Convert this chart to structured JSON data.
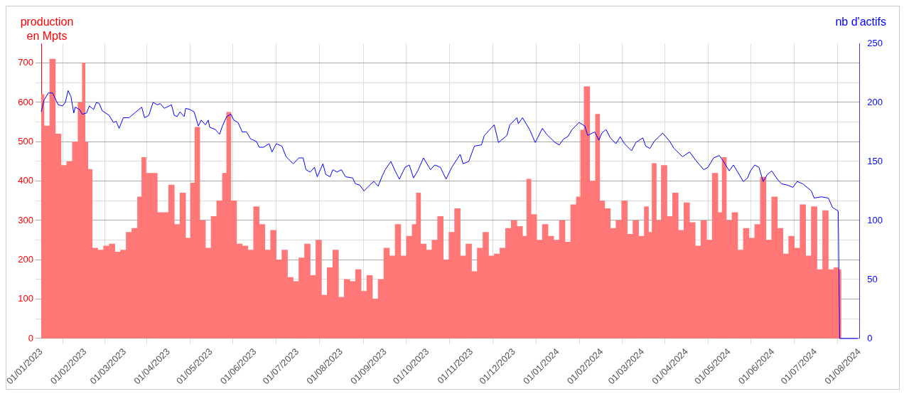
{
  "chart_data": {
    "type": "bar",
    "ylabel": "production en Mpts",
    "y2label": "nb d'actifs",
    "grid": true,
    "xlim": [
      "2023-01-01",
      "2024-08-01"
    ],
    "xticks": [
      {
        "value": "2023-01-01",
        "label": "01/01/2023"
      },
      {
        "value": "2023-02-01",
        "label": "01/02/2023"
      },
      {
        "value": "2023-03-01",
        "label": "01/03/2023"
      },
      {
        "value": "2023-04-01",
        "label": "01/04/2023"
      },
      {
        "value": "2023-05-01",
        "label": "01/05/2023"
      },
      {
        "value": "2023-06-01",
        "label": "01/06/2023"
      },
      {
        "value": "2023-07-01",
        "label": "01/07/2023"
      },
      {
        "value": "2023-08-01",
        "label": "01/08/2023"
      },
      {
        "value": "2023-09-01",
        "label": "01/09/2023"
      },
      {
        "value": "2023-10-01",
        "label": "01/10/2023"
      },
      {
        "value": "2023-11-01",
        "label": "01/11/2023"
      },
      {
        "value": "2023-12-01",
        "label": "01/12/2023"
      },
      {
        "value": "2024-01-01",
        "label": "01/01/2024"
      },
      {
        "value": "2024-02-01",
        "label": "01/02/2024"
      },
      {
        "value": "2024-03-01",
        "label": "01/03/2024"
      },
      {
        "value": "2024-04-01",
        "label": "01/04/2024"
      },
      {
        "value": "2024-05-01",
        "label": "01/05/2024"
      },
      {
        "value": "2024-06-01",
        "label": "01/06/2024"
      },
      {
        "value": "2024-07-01",
        "label": "01/07/2024"
      },
      {
        "value": "2024-08-01",
        "label": "01/08/2024"
      }
    ],
    "ylim": [
      0,
      750
    ],
    "yticks": [
      0,
      {
        "value": 50,
        "label": null
      },
      100,
      {
        "value": 150,
        "label": null
      },
      200,
      {
        "value": 250,
        "label": null
      },
      300,
      {
        "value": 350,
        "label": null
      },
      400,
      {
        "value": 450,
        "label": null
      },
      500,
      {
        "value": 550,
        "label": null
      },
      600,
      {
        "value": 650,
        "label": null
      },
      700
    ],
    "y2lim": [
      0,
      250
    ],
    "y2ticks": [
      0,
      50,
      100,
      150,
      200,
      250
    ],
    "series": [
      {
        "color": "#ff7777",
        "x": [
          "2023-01-01",
          "2023-01-05",
          "2023-01-09",
          "2023-01-13",
          "2023-01-17",
          "2023-01-21",
          "2023-01-25",
          "2023-01-29",
          "2023-01-31",
          "2023-02-02",
          "2023-02-04",
          "2023-02-08",
          "2023-02-12",
          "2023-02-16",
          "2023-02-20",
          "2023-02-24",
          "2023-02-28",
          "2023-03-04",
          "2023-03-08",
          "2023-03-12",
          "2023-03-14",
          "2023-03-18",
          "2023-03-22",
          "2023-03-26",
          "2023-03-30",
          "2023-04-03",
          "2023-04-07",
          "2023-04-11",
          "2023-04-15",
          "2023-04-18",
          "2023-04-21",
          "2023-04-25",
          "2023-04-29",
          "2023-05-03",
          "2023-05-07",
          "2023-05-11",
          "2023-05-13",
          "2023-05-17",
          "2023-05-21",
          "2023-05-25",
          "2023-05-29",
          "2023-06-02",
          "2023-06-06",
          "2023-06-10",
          "2023-06-14",
          "2023-06-18",
          "2023-06-22",
          "2023-06-26",
          "2023-06-30",
          "2023-07-04",
          "2023-07-08",
          "2023-07-12",
          "2023-07-16",
          "2023-07-20",
          "2023-07-24",
          "2023-07-28",
          "2023-08-01",
          "2023-08-05",
          "2023-08-09",
          "2023-08-13",
          "2023-08-17",
          "2023-08-21",
          "2023-08-25",
          "2023-08-29",
          "2023-09-02",
          "2023-09-06",
          "2023-09-10",
          "2023-09-14",
          "2023-09-18",
          "2023-09-22",
          "2023-09-24",
          "2023-09-28",
          "2023-10-02",
          "2023-10-06",
          "2023-10-10",
          "2023-10-14",
          "2023-10-18",
          "2023-10-22",
          "2023-10-26",
          "2023-10-30",
          "2023-11-03",
          "2023-11-07",
          "2023-11-11",
          "2023-11-15",
          "2023-11-19",
          "2023-11-23",
          "2023-11-27",
          "2023-12-01",
          "2023-12-05",
          "2023-12-09",
          "2023-12-11",
          "2023-12-15",
          "2023-12-19",
          "2023-12-23",
          "2023-12-27",
          "2023-12-31",
          "2024-01-04",
          "2024-01-08",
          "2024-01-12",
          "2024-01-16",
          "2024-01-18",
          "2024-01-21",
          "2024-01-26",
          "2024-01-29",
          "2024-02-01",
          "2024-02-05",
          "2024-02-09",
          "2024-02-13",
          "2024-02-17",
          "2024-02-21",
          "2024-02-25",
          "2024-02-29",
          "2024-03-04",
          "2024-03-06",
          "2024-03-09",
          "2024-03-12",
          "2024-03-16",
          "2024-03-20",
          "2024-03-24",
          "2024-03-28",
          "2024-04-01",
          "2024-04-05",
          "2024-04-09",
          "2024-04-13",
          "2024-04-17",
          "2024-04-21",
          "2024-04-25",
          "2024-04-27",
          "2024-05-01",
          "2024-05-05",
          "2024-05-09",
          "2024-05-13",
          "2024-05-17",
          "2024-05-21",
          "2024-05-25",
          "2024-05-29",
          "2024-06-02",
          "2024-06-06",
          "2024-06-10",
          "2024-06-14",
          "2024-06-18",
          "2024-06-22",
          "2024-06-26",
          "2024-06-30",
          "2024-07-04",
          "2024-07-08",
          "2024-07-12",
          "2024-07-16",
          "2024-07-18"
        ],
        "values": [
          620,
          540,
          710,
          520,
          440,
          450,
          500,
          600,
          700,
          500,
          430,
          230,
          225,
          235,
          240,
          220,
          225,
          270,
          280,
          360,
          460,
          420,
          420,
          320,
          320,
          390,
          290,
          370,
          255,
          395,
          537,
          300,
          230,
          310,
          350,
          420,
          575,
          350,
          240,
          235,
          225,
          335,
          290,
          225,
          275,
          200,
          225,
          155,
          145,
          205,
          240,
          160,
          250,
          110,
          180,
          225,
          105,
          150,
          145,
          175,
          120,
          160,
          100,
          150,
          230,
          210,
          290,
          210,
          260,
          290,
          370,
          240,
          225,
          250,
          310,
          200,
          270,
          330,
          210,
          240,
          170,
          230,
          270,
          210,
          215,
          230,
          280,
          300,
          285,
          260,
          405,
          315,
          250,
          290,
          260,
          250,
          300,
          245,
          340,
          360,
          530,
          640,
          400,
          570,
          350,
          330,
          280,
          300,
          350,
          265,
          300,
          260,
          335,
          270,
          445,
          300,
          440,
          310,
          370,
          275,
          345,
          295,
          235,
          300,
          250,
          420,
          320,
          460,
          300,
          320,
          225,
          280,
          255,
          290,
          410,
          250,
          360,
          280,
          215,
          260,
          230,
          340,
          210,
          335,
          175,
          325,
          175,
          180,
          175
        ]
      },
      {
        "type": "line",
        "axis": "y2",
        "color": "#0000ff",
        "x": [
          "2023-01-01",
          "2023-01-03",
          "2023-01-06",
          "2023-01-09",
          "2023-01-13",
          "2023-01-16",
          "2023-01-18",
          "2023-01-20",
          "2023-01-22",
          "2023-01-24",
          "2023-01-25",
          "2023-01-28",
          "2023-01-30",
          "2023-02-02",
          "2023-02-04",
          "2023-02-07",
          "2023-02-09",
          "2023-02-11",
          "2023-02-13",
          "2023-02-18",
          "2023-02-21",
          "2023-02-23",
          "2023-02-25",
          "2023-02-28",
          "2023-03-04",
          "2023-03-08",
          "2023-03-13",
          "2023-03-15",
          "2023-03-18",
          "2023-03-21",
          "2023-03-24",
          "2023-03-26",
          "2023-03-29",
          "2023-04-03",
          "2023-04-05",
          "2023-04-07",
          "2023-04-09",
          "2023-04-12",
          "2023-04-13",
          "2023-04-16",
          "2023-04-19",
          "2023-04-22",
          "2023-04-24",
          "2023-04-27",
          "2023-04-29",
          "2023-04-30",
          "2023-05-04",
          "2023-05-07",
          "2023-05-09",
          "2023-05-12",
          "2023-05-15",
          "2023-05-17",
          "2023-05-20",
          "2023-05-23",
          "2023-05-26",
          "2023-05-29",
          "2023-06-02",
          "2023-06-04",
          "2023-06-07",
          "2023-06-11",
          "2023-06-13",
          "2023-06-16",
          "2023-06-20",
          "2023-06-23",
          "2023-06-28",
          "2023-07-02",
          "2023-07-05",
          "2023-07-07",
          "2023-07-10",
          "2023-07-13",
          "2023-07-15",
          "2023-07-19",
          "2023-07-21",
          "2023-07-24",
          "2023-07-26",
          "2023-07-29",
          "2023-08-01",
          "2023-08-04",
          "2023-08-09",
          "2023-08-11",
          "2023-08-14",
          "2023-08-17",
          "2023-08-22",
          "2023-08-24",
          "2023-08-27",
          "2023-08-30",
          "2023-09-01",
          "2023-09-05",
          "2023-09-08",
          "2023-09-11",
          "2023-09-15",
          "2023-09-18",
          "2023-09-21",
          "2023-09-24",
          "2023-09-28",
          "2023-10-03",
          "2023-10-06",
          "2023-10-10",
          "2023-10-14",
          "2023-10-18",
          "2023-10-24",
          "2023-10-26",
          "2023-10-30",
          "2023-11-03",
          "2023-11-08",
          "2023-11-10",
          "2023-11-17",
          "2023-11-20",
          "2023-11-26",
          "2023-11-28",
          "2023-12-03",
          "2023-12-04",
          "2023-12-07",
          "2023-12-12",
          "2023-12-16",
          "2023-12-21",
          "2023-12-24",
          "2023-12-30",
          "2024-01-02",
          "2024-01-05",
          "2024-01-08",
          "2024-01-11",
          "2024-01-16",
          "2024-01-20",
          "2024-01-22",
          "2024-01-27",
          "2024-01-30",
          "2024-02-01",
          "2024-02-04",
          "2024-02-07",
          "2024-02-11",
          "2024-02-14",
          "2024-02-17",
          "2024-02-22",
          "2024-02-25",
          "2024-03-01",
          "2024-03-03",
          "2024-03-06",
          "2024-03-09",
          "2024-03-15",
          "2024-03-20",
          "2024-03-23",
          "2024-03-29",
          "2024-04-03",
          "2024-04-08",
          "2024-04-13",
          "2024-04-16",
          "2024-04-20",
          "2024-04-24",
          "2024-04-27",
          "2024-05-01",
          "2024-05-04",
          "2024-05-11",
          "2024-05-14",
          "2024-05-16",
          "2024-05-19",
          "2024-05-22",
          "2024-05-25",
          "2024-05-28",
          "2024-05-31",
          "2024-06-04",
          "2024-06-07",
          "2024-06-11",
          "2024-06-15",
          "2024-06-18",
          "2024-06-22",
          "2024-06-28",
          "2024-06-30",
          "2024-07-05",
          "2024-07-10",
          "2024-07-13",
          "2024-07-17",
          "2024-07-18",
          "2024-07-31"
        ],
        "values": [
          192,
          202,
          208,
          208,
          198,
          197,
          200,
          210,
          205,
          191,
          196,
          194,
          190,
          191,
          197,
          194,
          200,
          199,
          193,
          189,
          183,
          184,
          178,
          187,
          187,
          191,
          196,
          187,
          189,
          200,
          198,
          199,
          195,
          198,
          189,
          188,
          192,
          188,
          195,
          194,
          192,
          180,
          185,
          181,
          185,
          179,
          177,
          173,
          180,
          188,
          190,
          185,
          183,
          175,
          175,
          169,
          167,
          162,
          162,
          165,
          158,
          165,
          163,
          154,
          148,
          153,
          153,
          143,
          141,
          145,
          137,
          148,
          139,
          137,
          143,
          141,
          143,
          137,
          136,
          131,
          130,
          125,
          131,
          133,
          129,
          138,
          143,
          150,
          142,
          135,
          145,
          147,
          136,
          142,
          153,
          143,
          147,
          145,
          135,
          145,
          156,
          148,
          150,
          163,
          164,
          172,
          181,
          166,
          172,
          181,
          187,
          182,
          187,
          177,
          166,
          178,
          173,
          166,
          164,
          169,
          171,
          177,
          183,
          180,
          172,
          175,
          168,
          174,
          177,
          170,
          165,
          171,
          165,
          159,
          166,
          170,
          163,
          161,
          167,
          174,
          167,
          161,
          154,
          158,
          150,
          143,
          145,
          153,
          155,
          150,
          142,
          147,
          133,
          136,
          142,
          147,
          145,
          133,
          139,
          142,
          135,
          131,
          130,
          128,
          133,
          131,
          125,
          119,
          120,
          119,
          111,
          108,
          0,
          0
        ]
      }
    ]
  }
}
